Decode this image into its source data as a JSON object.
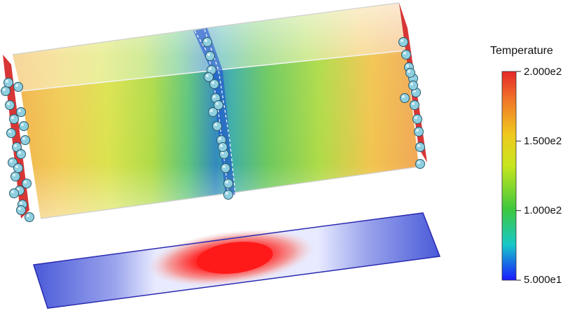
{
  "colorbar": {
    "title": "Temperature",
    "ticks": [
      {
        "label": "2.000e2",
        "value": 200
      },
      {
        "label": "1.500e2",
        "value": 150
      },
      {
        "label": "1.000e2",
        "value": 100
      },
      {
        "label": "5.000e1",
        "value": 50
      }
    ],
    "range": [
      50,
      200
    ],
    "colormap": [
      "#1a1aff",
      "#18c8c8",
      "#3ec83e",
      "#c8e61e",
      "#f0b41e",
      "#f07828",
      "#e62828"
    ]
  },
  "slice_colormap": [
    "#3a4bd0",
    "#e8e8ff",
    "#ff2020"
  ],
  "particle_color": "#8ecfe0",
  "plane_color": "#d42020"
}
